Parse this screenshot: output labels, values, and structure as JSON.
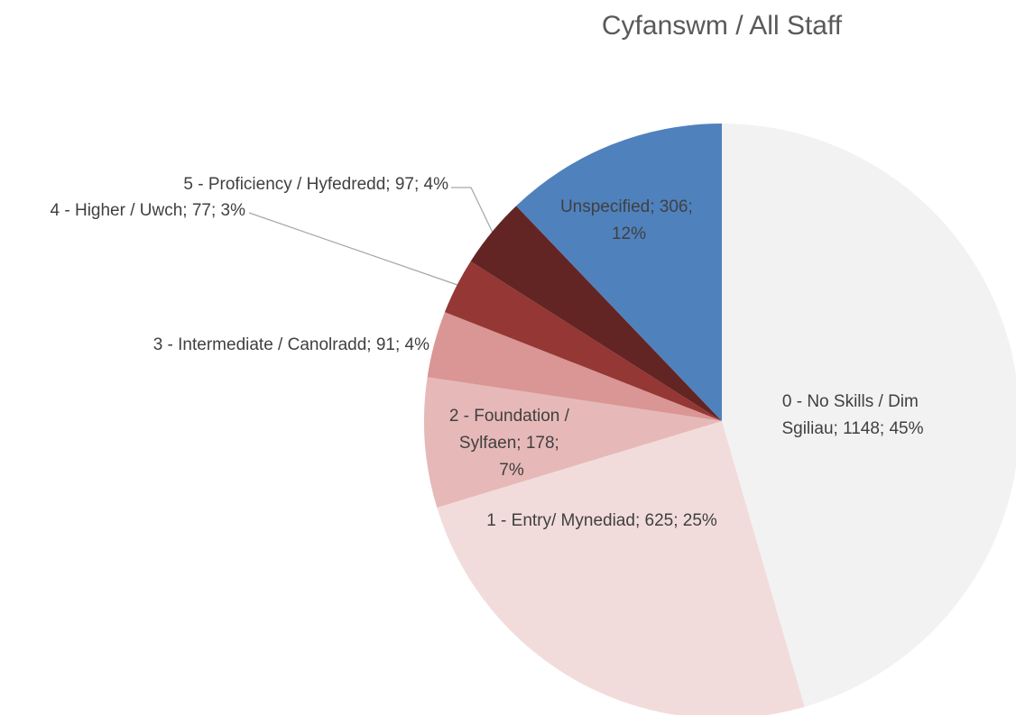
{
  "chart_data": {
    "type": "pie",
    "title": "Cyfanswm / All Staff",
    "values": [
      1148,
      625,
      178,
      91,
      77,
      97,
      306
    ],
    "value_labels": [
      "0 - No Skills / Dim Sgiliau; 1148; 45%",
      "1 - Entry/ Mynediad; 625; 25%",
      "2 - Foundation / Sylfaen; 178; 7%",
      "3 - Intermediate / Canolradd; 91; 4%",
      "4 - Higher / Uwch; 77; 3%",
      "5 - Proficiency / Hyfedredd; 97; 4%",
      "Unspecified; 306; 12%"
    ],
    "colors": [
      "#f2f2f2",
      "#f2dcdb",
      "#e6b9b8",
      "#d99694",
      "#953735",
      "#632523",
      "#4f81bd"
    ]
  }
}
